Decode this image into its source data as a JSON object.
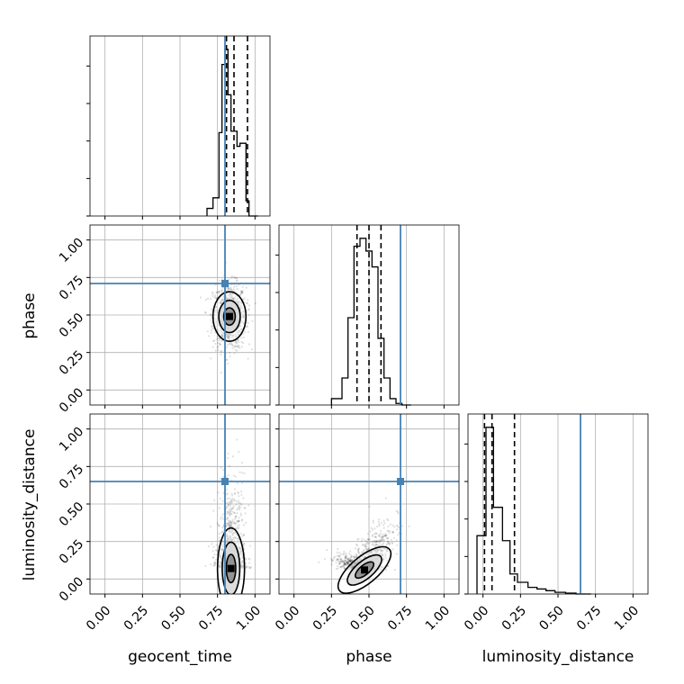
{
  "chart_data": {
    "type": "corner",
    "parameters": [
      "geocent_time",
      "phase",
      "luminosity_distance"
    ],
    "axis_range": [
      -0.1,
      1.1
    ],
    "tick_values": [
      0.0,
      0.25,
      0.5,
      0.75,
      1.0
    ],
    "tick_labels": [
      "0.00",
      "0.25",
      "0.50",
      "0.75",
      "1.00"
    ],
    "grid": true,
    "truths": {
      "geocent_time": 0.8,
      "phase": 0.71,
      "luminosity_distance": 0.65
    },
    "colors": {
      "truth": "#4682b4",
      "hist": "#000000",
      "quantile": "#000000",
      "grid": "#b0b0b0"
    },
    "histograms": [
      {
        "param": "geocent_time",
        "bin_edges": [
          0.68,
          0.72,
          0.76,
          0.78,
          0.8,
          0.82,
          0.84,
          0.86,
          0.88,
          0.9,
          0.92,
          0.94,
          0.96,
          0.98,
          1.02
        ],
        "counts": [
          0.05,
          0.12,
          0.55,
          1.0,
          1.1,
          0.8,
          0.56,
          0.56,
          0.46,
          0.48,
          0.48,
          0.1,
          0,
          0
        ],
        "quantiles": [
          0.81,
          0.86,
          0.95
        ]
      },
      {
        "param": "phase",
        "bin_edges": [
          0.25,
          0.32,
          0.36,
          0.4,
          0.44,
          0.48,
          0.52,
          0.56,
          0.6,
          0.64,
          0.68,
          0.72,
          0.78
        ],
        "counts": [
          0.04,
          0.17,
          0.55,
          1.0,
          1.05,
          0.97,
          0.87,
          0.42,
          0.17,
          0.04,
          0.01,
          0
        ],
        "quantiles": [
          0.42,
          0.5,
          0.58
        ]
      },
      {
        "param": "luminosity_distance",
        "bin_edges": [
          -0.04,
          0.02,
          0.07,
          0.13,
          0.18,
          0.23,
          0.3,
          0.36,
          0.42,
          0.48,
          0.55,
          0.62,
          0.72
        ],
        "counts": [
          0.35,
          1.0,
          0.52,
          0.32,
          0.12,
          0.07,
          0.04,
          0.03,
          0.02,
          0.01,
          0.005,
          0
        ],
        "quantiles": [
          0.01,
          0.06,
          0.21
        ]
      }
    ],
    "joint_distributions": [
      {
        "x": "geocent_time",
        "y": "phase",
        "center": [
          0.83,
          0.49
        ],
        "spread": [
          0.055,
          0.11
        ],
        "correlation": 0.0
      },
      {
        "x": "geocent_time",
        "y": "luminosity_distance",
        "center": [
          0.84,
          0.07
        ],
        "spread": [
          0.045,
          0.18
        ],
        "correlation": 0.1
      },
      {
        "x": "phase",
        "y": "luminosity_distance",
        "center": [
          0.47,
          0.06
        ],
        "spread": [
          0.09,
          0.1
        ],
        "correlation": 0.75
      }
    ]
  }
}
